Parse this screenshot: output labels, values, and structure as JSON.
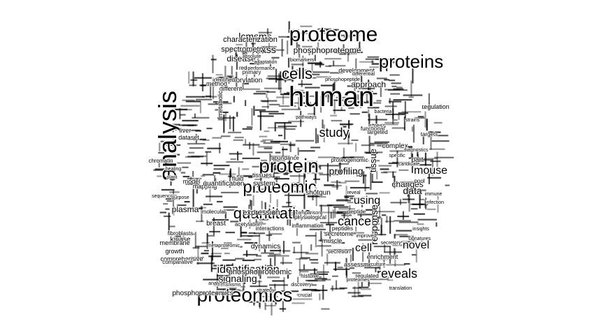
{
  "cloud": {
    "words": [
      "proteome",
      "human",
      "proteins",
      "analysis",
      "protein",
      "proteomic",
      "quantitative",
      "proteomics",
      "cells",
      "cancer",
      "study",
      "identification",
      "reveals",
      "cell",
      "mouse",
      "novel",
      "using",
      "signaling",
      "mass",
      "lcmsms",
      "profiling",
      "phosphoproteome",
      "expression",
      "characterization",
      "spectrometry",
      "phosphoproteomic",
      "data",
      "response",
      "tissue",
      "disease",
      "plasma",
      "changes",
      "approach",
      "phosphoproteomics",
      "phosphorylation",
      "development",
      "mapping",
      "quantification",
      "shotgun",
      "system",
      "complex",
      "kinase",
      "membrane",
      "growth",
      "comprehensive",
      "breast",
      "stress",
      "secretome",
      "muscle",
      "dynamics",
      "assessment",
      "enrichment",
      "regulation",
      "acetylation",
      "identified",
      "method",
      "different",
      "liver",
      "dataset",
      "model",
      "fluid",
      "tissues",
      "abundance",
      "proteogenomic",
      "peptide",
      "peptides",
      "inflammation",
      "physiological",
      "comparative",
      "fibroblasts",
      "functional",
      "regulated",
      "translation",
      "histone",
      "chromatin",
      "healing",
      "sequencing",
      "purpose",
      "plant",
      "secretion",
      "secretory",
      "targets",
      "candidate",
      "specific",
      "diagnostics",
      "infection",
      "immune",
      "interactions",
      "molecular",
      "metabolic",
      "primary",
      "redox",
      "performance",
      "adaptation",
      "absolute",
      "differential",
      "metaproteomic",
      "targeted",
      "comparison",
      "reveal",
      "mechanisms",
      "strategy",
      "analyses",
      "crucial",
      "discovery",
      "proteomes",
      "part",
      "pool",
      "improved",
      "insights",
      "signatures",
      "strains",
      "culture",
      "bacteria",
      "biomarkers",
      "phosphopeptide",
      "pathways"
    ]
  }
}
